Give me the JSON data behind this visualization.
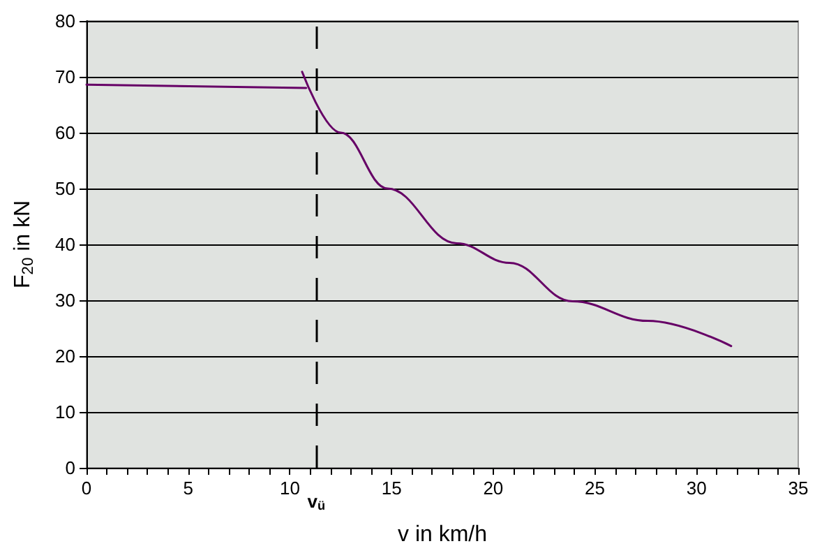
{
  "chart_data": {
    "type": "line",
    "xlabel": "v in km/h",
    "ylabel": "F$_{20}$ in kN",
    "series": [
      {
        "color": "#660066",
        "x": [
          0,
          10.8
        ],
        "values": [
          68.6,
          68.0
        ]
      },
      {
        "color": "#660066",
        "x": [
          10.6,
          12.5,
          14.8,
          18.2,
          20.8,
          23.9,
          27.6,
          31.7
        ],
        "values": [
          70.9,
          60,
          50,
          40.2,
          36.7,
          29.8,
          26.3,
          21.8
        ]
      }
    ],
    "xlim": [
      0,
      35
    ],
    "xticks": [
      0,
      {
        "value": 1,
        "label": null
      },
      {
        "value": 2,
        "label": null
      },
      {
        "value": 3,
        "label": null
      },
      {
        "value": 4,
        "label": null
      },
      5,
      {
        "value": 6,
        "label": null
      },
      {
        "value": 7,
        "label": null
      },
      {
        "value": 8,
        "label": null
      },
      {
        "value": 9,
        "label": null
      },
      10,
      {
        "value": 11,
        "label": null
      },
      {
        "value": 12,
        "label": null
      },
      {
        "value": 13,
        "label": null
      },
      {
        "value": 14,
        "label": null
      },
      15,
      {
        "value": 16,
        "label": null
      },
      {
        "value": 17,
        "label": null
      },
      {
        "value": 18,
        "label": null
      },
      {
        "value": 19,
        "label": null
      },
      20,
      {
        "value": 21,
        "label": null
      },
      {
        "value": 22,
        "label": null
      },
      {
        "value": 23,
        "label": null
      },
      {
        "value": 24,
        "label": null
      },
      25,
      {
        "value": 26,
        "label": null
      },
      {
        "value": 27,
        "label": null
      },
      {
        "value": 28,
        "label": null
      },
      {
        "value": 29,
        "label": null
      },
      30,
      {
        "value": 31,
        "label": null
      },
      {
        "value": 32,
        "label": null
      },
      {
        "value": 33,
        "label": null
      },
      {
        "value": 34,
        "label": null
      },
      35
    ],
    "ylim": [
      0,
      80
    ],
    "yticks": [
      0,
      10,
      20,
      30,
      40,
      50,
      60,
      70,
      80
    ],
    "grid": "y",
    "marker": "none",
    "line_style": "solid",
    "ref_lines": [
      {
        "axis": "x",
        "value": 11.3,
        "label": "v$_{ü}$",
        "color": "#000000",
        "line_style": "dashed"
      }
    ]
  }
}
